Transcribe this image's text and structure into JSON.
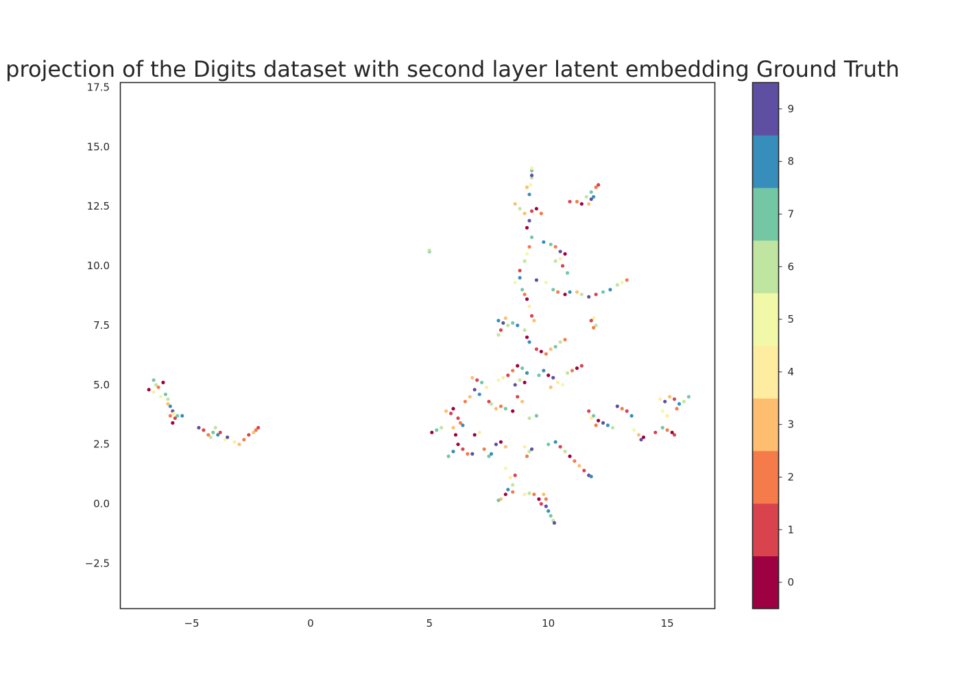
{
  "chart_data": {
    "type": "scatter",
    "title": "projection of the Digits dataset with second layer latent embedding Ground Truth",
    "xlabel": "",
    "ylabel": "",
    "xlim": [
      -8,
      17
    ],
    "ylim": [
      -4.4,
      17.7
    ],
    "x_ticks": [
      -5,
      0,
      5,
      10,
      15
    ],
    "x_tick_labels": [
      "−5",
      "0",
      "5",
      "10",
      "15"
    ],
    "y_ticks": [
      -2.5,
      0.0,
      2.5,
      5.0,
      7.5,
      10.0,
      12.5,
      15.0,
      17.5
    ],
    "y_tick_labels": [
      "−2.5",
      "0.0",
      "2.5",
      "5.0",
      "7.5",
      "10.0",
      "12.5",
      "15.0",
      "17.5"
    ],
    "grid": false,
    "legend": "colorbar-right",
    "colorbar": {
      "labels": [
        "0",
        "1",
        "2",
        "3",
        "4",
        "5",
        "6",
        "7",
        "8",
        "9"
      ],
      "colors": [
        "#9e0142",
        "#d8434e",
        "#f67b4a",
        "#fdbf6f",
        "#feeda1",
        "#f1f9a9",
        "#bfe5a0",
        "#74c7a5",
        "#378ebb",
        "#5e4fa2"
      ]
    },
    "points": [
      [
        -6.8,
        4.8,
        0
      ],
      [
        -6.6,
        5.2,
        7
      ],
      [
        -6.4,
        4.9,
        2
      ],
      [
        -6.2,
        5.1,
        0
      ],
      [
        -6.6,
        4.7,
        4
      ],
      [
        -6.5,
        5.0,
        6
      ],
      [
        -6.1,
        4.6,
        7
      ],
      [
        -6.0,
        4.4,
        6
      ],
      [
        -5.9,
        4.1,
        8
      ],
      [
        -5.8,
        3.9,
        9
      ],
      [
        -5.9,
        3.7,
        2
      ],
      [
        -5.7,
        3.6,
        1
      ],
      [
        -5.8,
        3.4,
        0
      ],
      [
        -5.6,
        3.7,
        7
      ],
      [
        -5.4,
        3.7,
        8
      ],
      [
        -6.3,
        4.5,
        5
      ],
      [
        -6.0,
        4.2,
        3
      ],
      [
        -5.75,
        3.8,
        4
      ],
      [
        -4.7,
        3.2,
        9
      ],
      [
        -4.5,
        3.1,
        1
      ],
      [
        -4.3,
        2.9,
        2
      ],
      [
        -4.1,
        3.0,
        7
      ],
      [
        -4.0,
        3.2,
        6
      ],
      [
        -3.9,
        2.9,
        8
      ],
      [
        -3.8,
        3.0,
        1
      ],
      [
        -4.2,
        2.8,
        6
      ],
      [
        -3.5,
        2.8,
        9
      ],
      [
        -3.2,
        2.6,
        4
      ],
      [
        -3.0,
        2.5,
        3
      ],
      [
        -2.8,
        2.7,
        2
      ],
      [
        -2.6,
        2.9,
        1
      ],
      [
        -2.4,
        3.0,
        3
      ],
      [
        -2.3,
        3.1,
        2
      ],
      [
        -2.2,
        3.2,
        1
      ],
      [
        -3.6,
        2.7,
        5
      ],
      [
        5.0,
        10.6,
        7
      ],
      [
        5.0,
        10.65,
        6
      ],
      [
        5.1,
        3.0,
        0
      ],
      [
        5.3,
        3.1,
        7
      ],
      [
        5.5,
        3.2,
        6
      ],
      [
        5.7,
        3.9,
        3
      ],
      [
        5.9,
        3.8,
        1
      ],
      [
        6.0,
        4.0,
        0
      ],
      [
        6.2,
        3.6,
        1
      ],
      [
        6.3,
        3.4,
        2
      ],
      [
        6.4,
        3.3,
        8
      ],
      [
        6.0,
        3.2,
        3
      ],
      [
        6.1,
        2.9,
        0
      ],
      [
        5.8,
        2.0,
        7
      ],
      [
        6.0,
        2.2,
        8
      ],
      [
        6.2,
        2.5,
        0
      ],
      [
        6.4,
        2.3,
        1
      ],
      [
        6.6,
        2.1,
        2
      ],
      [
        6.8,
        2.1,
        9
      ],
      [
        6.9,
        2.9,
        0
      ],
      [
        7.1,
        3.0,
        4
      ],
      [
        7.3,
        2.3,
        2
      ],
      [
        7.5,
        2.0,
        7
      ],
      [
        7.6,
        2.1,
        8
      ],
      [
        7.8,
        2.5,
        9
      ],
      [
        8.0,
        2.6,
        0
      ],
      [
        8.2,
        2.4,
        3
      ],
      [
        6.5,
        4.3,
        2
      ],
      [
        6.7,
        4.5,
        3
      ],
      [
        6.9,
        4.8,
        9
      ],
      [
        7.1,
        4.6,
        8
      ],
      [
        6.8,
        5.3,
        3
      ],
      [
        7.0,
        5.2,
        1
      ],
      [
        7.2,
        5.1,
        7
      ],
      [
        7.4,
        4.9,
        4
      ],
      [
        7.5,
        4.3,
        1
      ],
      [
        7.6,
        4.2,
        6
      ],
      [
        7.8,
        4.0,
        3
      ],
      [
        8.0,
        4.1,
        2
      ],
      [
        8.2,
        4.0,
        7
      ],
      [
        7.9,
        5.2,
        5
      ],
      [
        8.1,
        5.3,
        4
      ],
      [
        8.3,
        5.4,
        1
      ],
      [
        8.5,
        5.6,
        2
      ],
      [
        8.7,
        5.8,
        0
      ],
      [
        8.9,
        5.7,
        7
      ],
      [
        9.1,
        5.5,
        8
      ],
      [
        8.6,
        5.0,
        9
      ],
      [
        8.8,
        5.2,
        6
      ],
      [
        9.0,
        5.1,
        0
      ],
      [
        8.7,
        4.5,
        1
      ],
      [
        8.5,
        3.9,
        0
      ],
      [
        8.9,
        4.3,
        3
      ],
      [
        9.2,
        3.6,
        6
      ],
      [
        9.5,
        3.7,
        7
      ],
      [
        9.0,
        2.4,
        4
      ],
      [
        9.2,
        2.2,
        6
      ],
      [
        9.1,
        2.0,
        2
      ],
      [
        9.3,
        2.3,
        9
      ],
      [
        8.2,
        1.5,
        5
      ],
      [
        8.4,
        1.1,
        4
      ],
      [
        8.5,
        0.8,
        6
      ],
      [
        8.3,
        0.6,
        8
      ],
      [
        8.5,
        0.5,
        2
      ],
      [
        8.2,
        0.4,
        0
      ],
      [
        8.0,
        0.2,
        3
      ],
      [
        7.9,
        0.15,
        7
      ],
      [
        8.6,
        1.2,
        1
      ],
      [
        9.0,
        0.4,
        4
      ],
      [
        9.2,
        0.45,
        6
      ],
      [
        9.4,
        0.4,
        2
      ],
      [
        9.6,
        0.2,
        0
      ],
      [
        9.7,
        0.0,
        1
      ],
      [
        9.9,
        -0.1,
        9
      ],
      [
        10.0,
        -0.3,
        8
      ],
      [
        10.1,
        -0.5,
        7
      ],
      [
        10.2,
        -0.7,
        6
      ],
      [
        10.25,
        -0.8,
        9
      ],
      [
        9.8,
        0.4,
        3
      ],
      [
        9.9,
        0.2,
        2
      ],
      [
        8.6,
        9.3,
        5
      ],
      [
        8.8,
        9.5,
        8
      ],
      [
        8.9,
        9.0,
        7
      ],
      [
        9.0,
        8.8,
        2
      ],
      [
        9.1,
        8.6,
        0
      ],
      [
        9.2,
        8.3,
        4
      ],
      [
        9.3,
        7.9,
        1
      ],
      [
        9.4,
        7.7,
        3
      ],
      [
        9.0,
        7.3,
        6
      ],
      [
        9.1,
        7.0,
        0
      ],
      [
        9.2,
        6.8,
        8
      ],
      [
        8.8,
        9.8,
        1
      ],
      [
        9.0,
        10.2,
        6
      ],
      [
        9.1,
        10.5,
        5
      ],
      [
        9.2,
        10.8,
        2
      ],
      [
        9.3,
        11.2,
        7
      ],
      [
        9.1,
        11.6,
        0
      ],
      [
        9.2,
        11.9,
        9
      ],
      [
        9.0,
        12.2,
        3
      ],
      [
        9.3,
        12.3,
        1
      ],
      [
        9.5,
        12.4,
        0
      ],
      [
        9.7,
        12.2,
        2
      ],
      [
        8.6,
        12.6,
        3
      ],
      [
        8.8,
        12.4,
        6
      ],
      [
        9.2,
        13.0,
        8
      ],
      [
        9.25,
        13.4,
        5
      ],
      [
        9.3,
        13.7,
        6
      ],
      [
        9.3,
        14.0,
        7
      ],
      [
        9.3,
        14.1,
        4
      ],
      [
        9.3,
        13.8,
        9
      ],
      [
        9.1,
        13.3,
        3
      ],
      [
        9.8,
        11.0,
        8
      ],
      [
        10.1,
        10.9,
        7
      ],
      [
        10.3,
        10.8,
        2
      ],
      [
        10.5,
        10.6,
        9
      ],
      [
        10.7,
        10.5,
        0
      ],
      [
        10.3,
        10.2,
        6
      ],
      [
        10.6,
        10.0,
        1
      ],
      [
        9.5,
        9.4,
        9
      ],
      [
        9.9,
        9.3,
        5
      ],
      [
        10.2,
        9.0,
        7
      ],
      [
        10.4,
        8.9,
        2
      ],
      [
        10.7,
        8.8,
        0
      ],
      [
        10.9,
        8.9,
        8
      ],
      [
        11.2,
        8.9,
        3
      ],
      [
        11.4,
        8.8,
        6
      ],
      [
        11.7,
        8.7,
        9
      ],
      [
        12.0,
        8.8,
        1
      ],
      [
        12.3,
        8.9,
        7
      ],
      [
        12.6,
        9.0,
        8
      ],
      [
        12.9,
        9.2,
        6
      ],
      [
        13.1,
        9.3,
        5
      ],
      [
        13.3,
        9.4,
        2
      ],
      [
        10.8,
        9.7,
        7
      ],
      [
        10.5,
        10.3,
        4
      ],
      [
        10.9,
        12.7,
        1
      ],
      [
        11.2,
        12.7,
        2
      ],
      [
        11.4,
        12.6,
        0
      ],
      [
        11.6,
        12.9,
        6
      ],
      [
        11.8,
        13.1,
        7
      ],
      [
        12.0,
        13.3,
        2
      ],
      [
        12.1,
        13.4,
        1
      ],
      [
        11.9,
        12.9,
        8
      ],
      [
        11.8,
        12.8,
        9
      ],
      [
        11.7,
        12.6,
        3
      ],
      [
        11.9,
        7.8,
        4
      ],
      [
        12.0,
        7.5,
        6
      ],
      [
        11.9,
        7.4,
        2
      ],
      [
        11.8,
        7.7,
        1
      ],
      [
        7.9,
        7.7,
        8
      ],
      [
        8.1,
        7.6,
        9
      ],
      [
        8.3,
        7.5,
        6
      ],
      [
        8.5,
        7.6,
        7
      ],
      [
        8.7,
        7.5,
        8
      ],
      [
        8.0,
        7.3,
        1
      ],
      [
        7.9,
        7.1,
        6
      ],
      [
        8.2,
        7.8,
        3
      ],
      [
        9.5,
        6.5,
        1
      ],
      [
        9.7,
        6.4,
        0
      ],
      [
        9.9,
        6.3,
        2
      ],
      [
        10.1,
        6.5,
        3
      ],
      [
        10.3,
        6.6,
        7
      ],
      [
        10.5,
        6.8,
        6
      ],
      [
        10.7,
        6.9,
        2
      ],
      [
        9.8,
        5.6,
        8
      ],
      [
        10.0,
        5.4,
        0
      ],
      [
        10.2,
        5.3,
        9
      ],
      [
        10.4,
        5.1,
        4
      ],
      [
        10.6,
        5.0,
        5
      ],
      [
        10.8,
        5.5,
        6
      ],
      [
        11.0,
        5.6,
        2
      ],
      [
        11.2,
        5.7,
        0
      ],
      [
        11.4,
        5.8,
        1
      ],
      [
        9.6,
        5.4,
        7
      ],
      [
        10.1,
        4.9,
        3
      ],
      [
        11.7,
        3.9,
        1
      ],
      [
        11.9,
        3.7,
        7
      ],
      [
        12.1,
        3.5,
        0
      ],
      [
        12.3,
        3.4,
        9
      ],
      [
        12.5,
        3.3,
        8
      ],
      [
        12.7,
        3.2,
        6
      ],
      [
        12.0,
        3.3,
        2
      ],
      [
        11.8,
        3.6,
        4
      ],
      [
        12.9,
        4.1,
        9
      ],
      [
        13.1,
        4.0,
        2
      ],
      [
        13.3,
        3.9,
        1
      ],
      [
        13.5,
        3.7,
        8
      ],
      [
        13.6,
        3.1,
        5
      ],
      [
        13.8,
        2.9,
        3
      ],
      [
        14.0,
        2.8,
        0
      ],
      [
        13.9,
        2.7,
        9
      ],
      [
        10.3,
        2.6,
        8
      ],
      [
        10.5,
        2.4,
        1
      ],
      [
        10.7,
        2.2,
        6
      ],
      [
        10.9,
        2.0,
        0
      ],
      [
        11.1,
        1.8,
        2
      ],
      [
        11.3,
        1.6,
        3
      ],
      [
        11.5,
        1.4,
        1
      ],
      [
        11.7,
        1.2,
        9
      ],
      [
        11.8,
        1.15,
        8
      ],
      [
        10.0,
        2.5,
        7
      ],
      [
        14.5,
        3.0,
        1
      ],
      [
        14.8,
        3.2,
        7
      ],
      [
        15.0,
        3.1,
        2
      ],
      [
        15.2,
        3.0,
        0
      ],
      [
        15.3,
        2.9,
        1
      ],
      [
        14.9,
        4.3,
        9
      ],
      [
        15.1,
        4.5,
        3
      ],
      [
        15.3,
        4.4,
        1
      ],
      [
        15.5,
        4.2,
        8
      ],
      [
        15.7,
        4.3,
        6
      ],
      [
        15.9,
        4.5,
        7
      ],
      [
        15.0,
        3.7,
        4
      ],
      [
        14.8,
        3.9,
        5
      ],
      [
        15.4,
        4.0,
        2
      ],
      [
        14.7,
        4.4,
        4
      ]
    ]
  }
}
